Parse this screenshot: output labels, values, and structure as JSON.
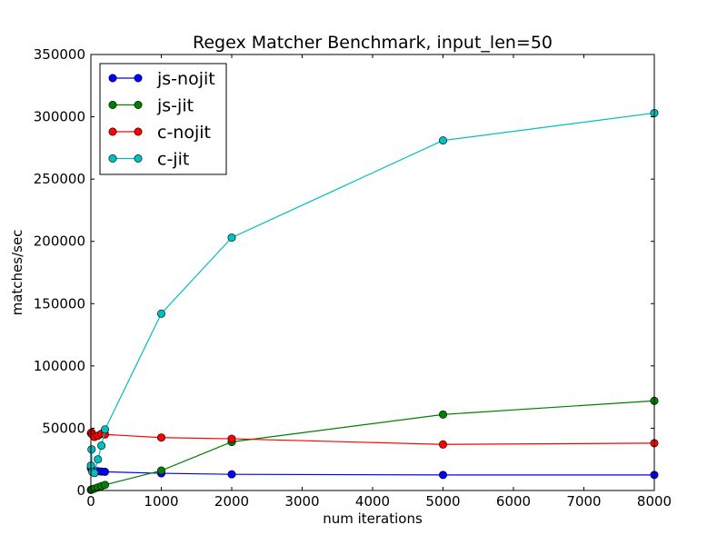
{
  "chart_data": {
    "type": "line",
    "title": "Regex Matcher Benchmark, input_len=50",
    "xlabel": "num iterations",
    "ylabel": "matches/sec",
    "xlim": [
      0,
      8000
    ],
    "ylim": [
      0,
      350000
    ],
    "xticks": [
      "0",
      "1000",
      "2000",
      "3000",
      "4000",
      "5000",
      "6000",
      "7000",
      "8000"
    ],
    "yticks": [
      "0",
      "50000",
      "100000",
      "150000",
      "200000",
      "250000",
      "300000",
      "350000"
    ],
    "grid": false,
    "legend_position": "top-left",
    "series": [
      {
        "name": "js-nojit",
        "color": "#0000ff",
        "x": [
          1,
          10,
          20,
          50,
          100,
          150,
          200,
          1000,
          2000,
          5000,
          8000
        ],
        "y": [
          18000,
          17000,
          16500,
          16000,
          15500,
          15200,
          15000,
          13800,
          13000,
          12500,
          12500
        ]
      },
      {
        "name": "js-jit",
        "color": "#008000",
        "x": [
          1,
          10,
          20,
          50,
          100,
          150,
          200,
          1000,
          2000,
          5000,
          8000
        ],
        "y": [
          500,
          800,
          1000,
          1500,
          2500,
          3500,
          4500,
          16000,
          39000,
          61000,
          72000
        ]
      },
      {
        "name": "c-nojit",
        "color": "#ff0000",
        "x": [
          1,
          10,
          20,
          50,
          100,
          150,
          200,
          1000,
          2000,
          5000,
          8000
        ],
        "y": [
          46000,
          46500,
          45000,
          43000,
          44000,
          45500,
          45000,
          42500,
          41500,
          37000,
          38000
        ]
      },
      {
        "name": "c-jit",
        "color": "#00bfbf",
        "x": [
          1,
          10,
          20,
          50,
          100,
          150,
          200,
          1000,
          2000,
          5000,
          8000
        ],
        "y": [
          20000,
          33000,
          15000,
          14000,
          25000,
          36000,
          49000,
          142000,
          203000,
          281000,
          303000
        ]
      }
    ]
  }
}
